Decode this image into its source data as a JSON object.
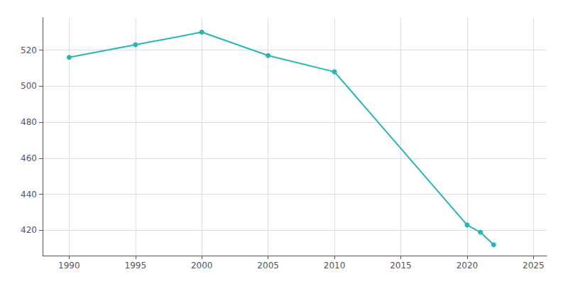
{
  "chart_data": {
    "type": "line",
    "x": [
      1990,
      1995,
      2000,
      2005,
      2010,
      2020,
      2021,
      2022
    ],
    "values": [
      516,
      523,
      530,
      517,
      508,
      423,
      419,
      412
    ],
    "color": "#2ab5b5",
    "marker": "circle",
    "xlim": [
      1988,
      2026
    ],
    "ylim": [
      406,
      538
    ],
    "xticks": [
      1990,
      1995,
      2000,
      2005,
      2010,
      2015,
      2020,
      2025
    ],
    "yticks": [
      420,
      440,
      460,
      480,
      500,
      520
    ],
    "grid": true
  }
}
